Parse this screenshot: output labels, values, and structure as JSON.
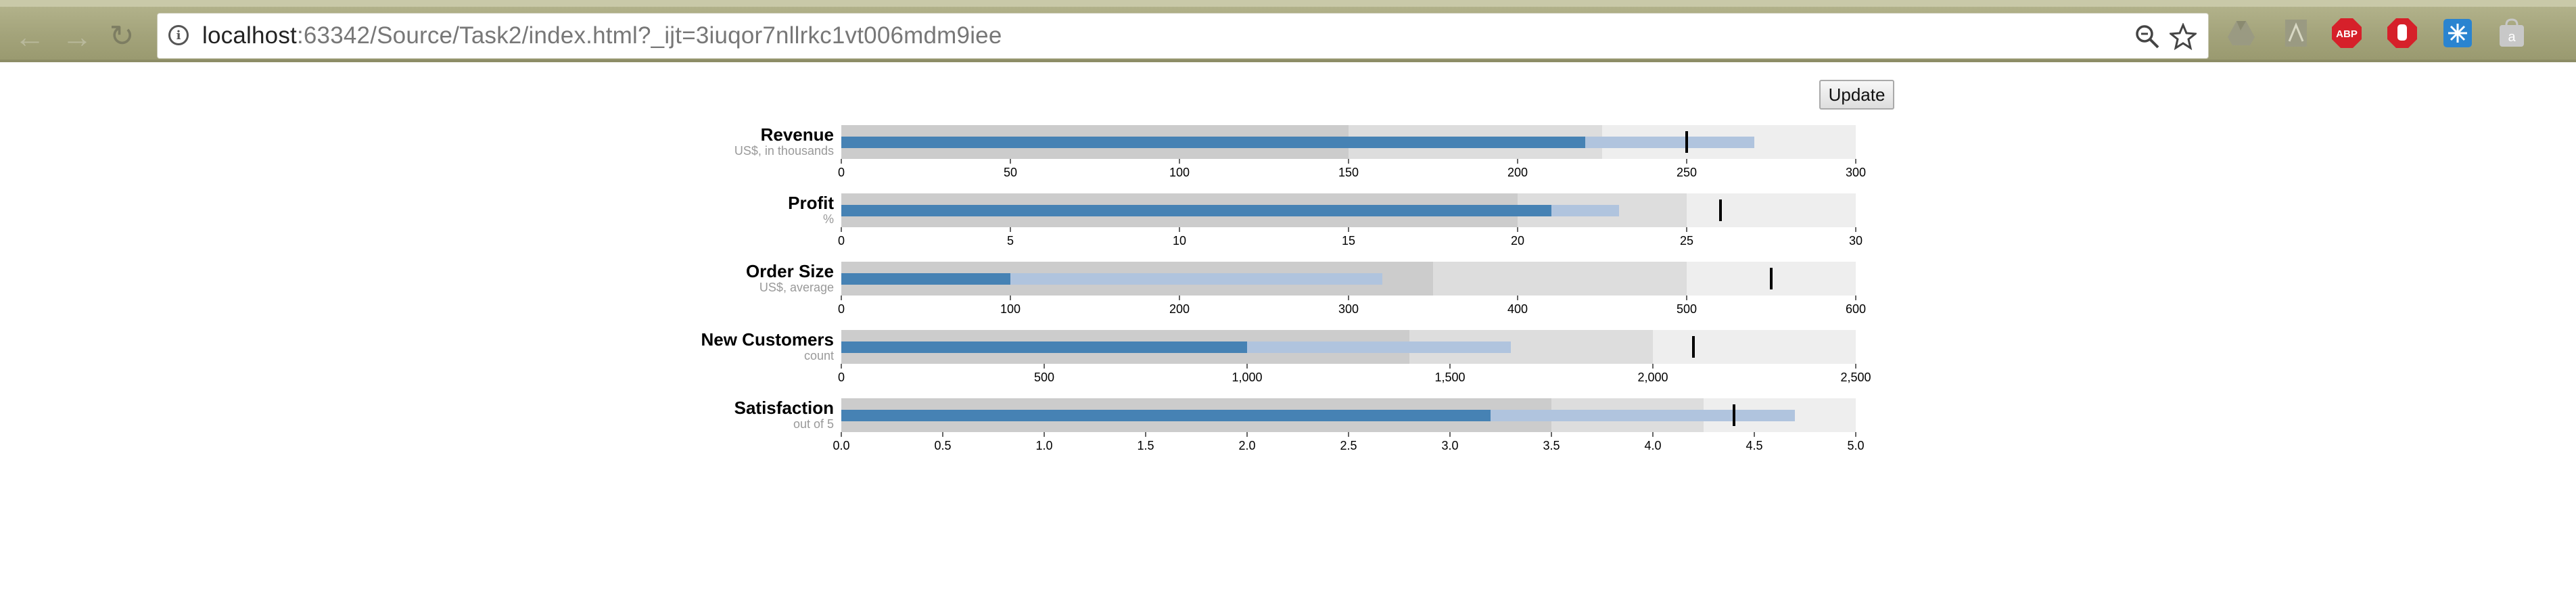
{
  "browser": {
    "url_host": "localhost",
    "url_rest": ":63342/Source/Task2/index.html?_ijt=3iuqor7nllrkc1vt006mdm9iee",
    "icons": [
      "back-arrow-icon",
      "forward-arrow-icon",
      "reload-icon",
      "info-icon",
      "zoom-icon",
      "star-icon"
    ],
    "extensions": [
      {
        "name": "drive-icon",
        "label": "",
        "color": "#9a9a82"
      },
      {
        "name": "pdf-icon",
        "label": "",
        "color": "#9a9a82"
      },
      {
        "name": "adblock-plus-icon",
        "label": "ABP",
        "color": "#d6202a"
      },
      {
        "name": "hand-stop-icon",
        "label": "",
        "color": "#d6202a"
      },
      {
        "name": "snowflake-icon",
        "label": "",
        "color": "#2a84d0"
      },
      {
        "name": "a-extension-icon",
        "label": "a",
        "color": "#c8c8c8"
      }
    ]
  },
  "update_label": "Update",
  "colors": {
    "range_light": "#eeeeee",
    "range_mid": "#dddddd",
    "range_dark": "#cccccc",
    "measure_dark": "#4682b4",
    "measure_light": "#b0c4de",
    "marker": "#000000"
  },
  "chart_data": {
    "type": "bar",
    "subtype": "bullet",
    "bullets": [
      {
        "title": "Revenue",
        "subtitle": "US$, in thousands",
        "ranges": [
          150,
          225,
          300
        ],
        "measures": [
          220,
          270
        ],
        "markers": [
          250
        ],
        "ticks": [
          "0",
          "50",
          "100",
          "150",
          "200",
          "250",
          "300"
        ],
        "max": 300
      },
      {
        "title": "Profit",
        "subtitle": "%",
        "ranges": [
          20,
          25,
          30
        ],
        "measures": [
          21,
          23
        ],
        "markers": [
          26
        ],
        "ticks": [
          "0",
          "5",
          "10",
          "15",
          "20",
          "25",
          "30"
        ],
        "max": 30
      },
      {
        "title": "Order Size",
        "subtitle": "US$, average",
        "ranges": [
          350,
          500,
          600
        ],
        "measures": [
          100,
          320
        ],
        "markers": [
          550
        ],
        "ticks": [
          "0",
          "100",
          "200",
          "300",
          "400",
          "500",
          "600"
        ],
        "max": 600
      },
      {
        "title": "New Customers",
        "subtitle": "count",
        "ranges": [
          1400,
          2000,
          2500
        ],
        "measures": [
          1000,
          1650
        ],
        "markers": [
          2100
        ],
        "ticks": [
          "0",
          "500",
          "1,000",
          "1,500",
          "2,000",
          "2,500"
        ],
        "max": 2500
      },
      {
        "title": "Satisfaction",
        "subtitle": "out of 5",
        "ranges": [
          3.5,
          4.25,
          5
        ],
        "measures": [
          3.2,
          4.7
        ],
        "markers": [
          4.4
        ],
        "ticks": [
          "0.0",
          "0.5",
          "1.0",
          "1.5",
          "2.0",
          "2.5",
          "3.0",
          "3.5",
          "4.0",
          "4.5",
          "5.0"
        ],
        "max": 5
      }
    ]
  }
}
